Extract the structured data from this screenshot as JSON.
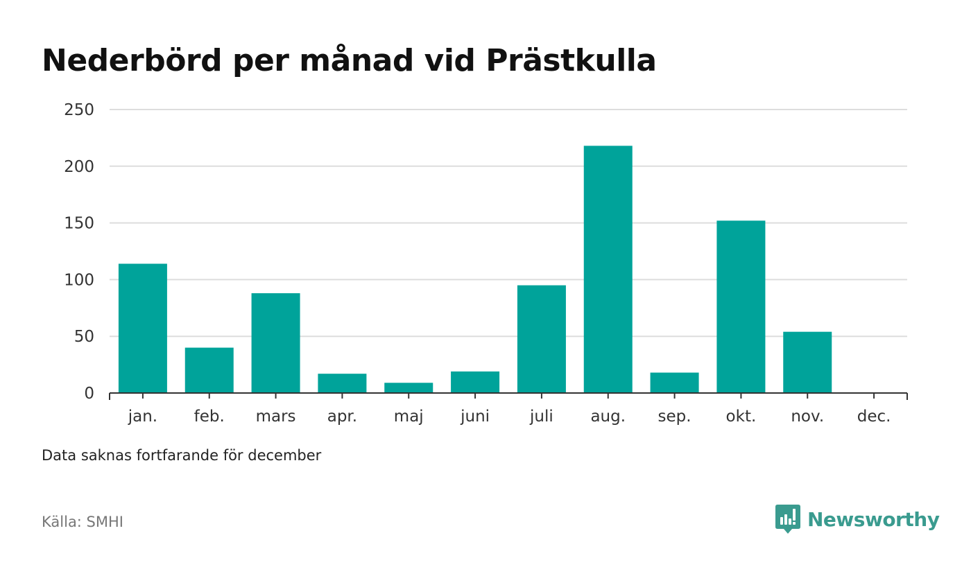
{
  "title": "Nederbörd per månad vid Prästkulla",
  "note": "Data saknas fortfarande för december",
  "source": "Källa: SMHI",
  "brand": {
    "name": "Newsworthy",
    "color": "#3a9b8f"
  },
  "colors": {
    "bar": "#00a39a",
    "grid": "#dddddd",
    "axis": "#333333"
  },
  "chart_data": {
    "type": "bar",
    "title": "Nederbörd per månad vid Prästkulla",
    "xlabel": "",
    "ylabel": "",
    "categories": [
      "jan.",
      "feb.",
      "mars",
      "apr.",
      "maj",
      "juni",
      "juli",
      "aug.",
      "sep.",
      "okt.",
      "nov.",
      "dec."
    ],
    "values": [
      114,
      40,
      88,
      17,
      9,
      19,
      95,
      218,
      18,
      152,
      54,
      null
    ],
    "ylim": [
      0,
      250
    ],
    "yticks": [
      0,
      50,
      100,
      150,
      200,
      250
    ],
    "grid": true,
    "legend": "none"
  }
}
